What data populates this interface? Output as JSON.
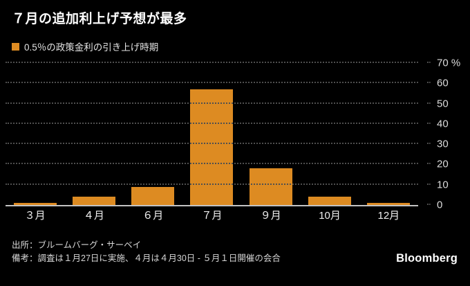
{
  "page": {
    "background_color": "#000000",
    "accent_color": "#DD8B22"
  },
  "header": {
    "title": "７月の追加利上げ予想が最多",
    "legend": {
      "swatch_color": "#DD8B22",
      "label": "0.5％の政策金利の引き上げ時期"
    }
  },
  "chart_data": {
    "type": "bar",
    "title": "７月の追加利上げ予想が最多",
    "legend": "0.5％の政策金利の引き上げ時期",
    "categories": [
      "３月",
      "４月",
      "６月",
      "７月",
      "９月",
      "10月",
      "12月"
    ],
    "values": [
      1,
      4,
      9,
      57,
      18,
      4,
      1
    ],
    "xlabel": "",
    "ylabel": "%",
    "ylim": [
      0,
      70
    ],
    "ytick_values": [
      70,
      60,
      50,
      40,
      30,
      20,
      10,
      0
    ],
    "ytick_labels": [
      "70 %",
      "60",
      "50",
      "40",
      "30",
      "20",
      "10",
      "0"
    ],
    "yaxis_side": "right",
    "grid": "horizontal-dotted",
    "legend_position": "top-left",
    "bar_color": "#DD8B22",
    "background": "#000000"
  },
  "footer": {
    "source": "出所：ブルームバーグ・サーベイ",
    "note": "備考：調査は１月27日に実施、４月は４月30日 - ５月１日開催の会合",
    "brand": "Bloomberg"
  }
}
